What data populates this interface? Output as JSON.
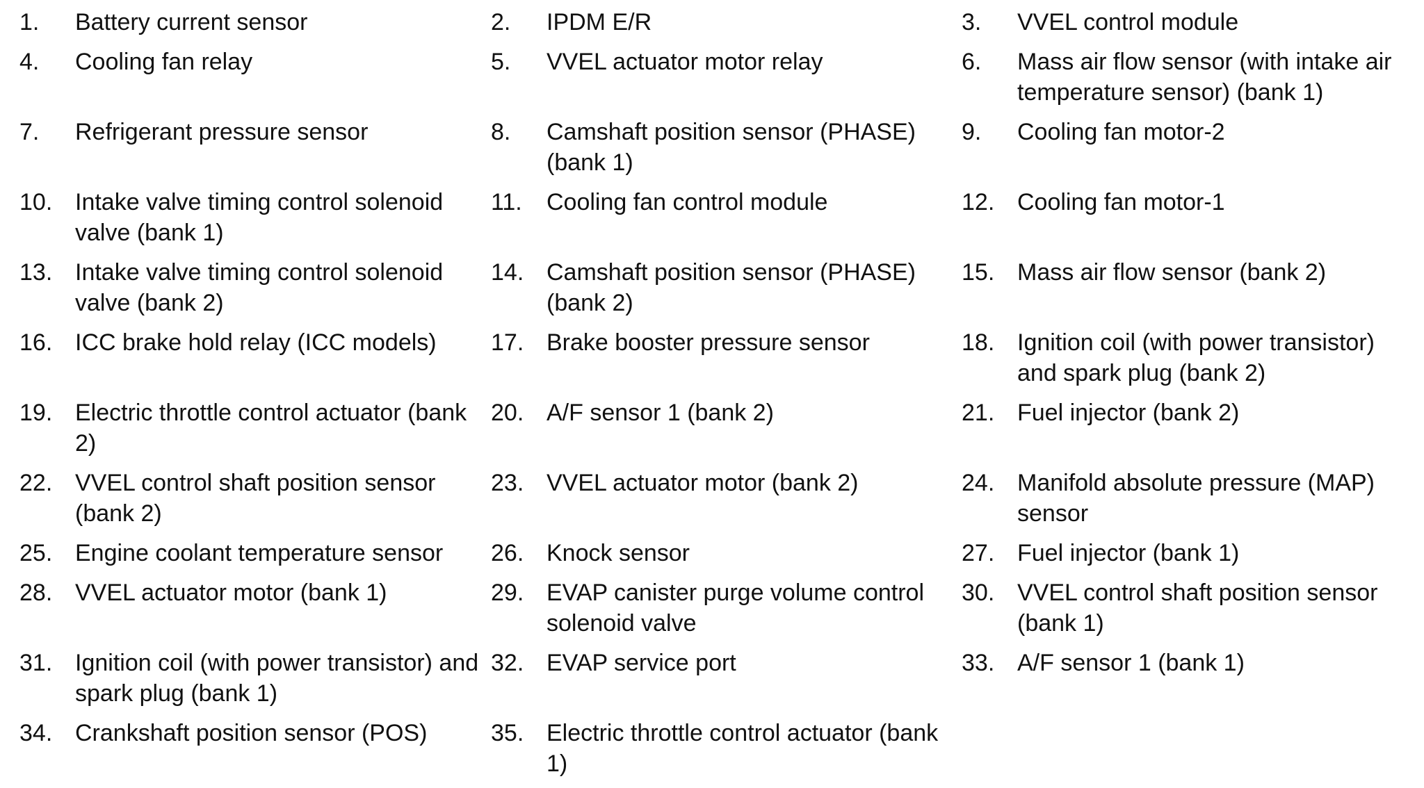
{
  "legend": {
    "items": [
      {
        "num": "1.",
        "label": "Battery current sensor"
      },
      {
        "num": "2.",
        "label": "IPDM E/R"
      },
      {
        "num": "3.",
        "label": "VVEL control module"
      },
      {
        "num": "4.",
        "label": "Cooling fan relay"
      },
      {
        "num": "5.",
        "label": "VVEL actuator motor relay"
      },
      {
        "num": "6.",
        "label": "Mass air flow sensor (with intake air temperature sensor) (bank 1)"
      },
      {
        "num": "7.",
        "label": "Refrigerant pressure sensor"
      },
      {
        "num": "8.",
        "label": "Camshaft position sensor (PHASE) (bank 1)"
      },
      {
        "num": "9.",
        "label": "Cooling fan motor-2"
      },
      {
        "num": "10.",
        "label": "Intake valve timing control solenoid valve (bank 1)"
      },
      {
        "num": "11.",
        "label": "Cooling fan control module"
      },
      {
        "num": "12.",
        "label": "Cooling fan motor-1"
      },
      {
        "num": "13.",
        "label": "Intake valve timing control solenoid valve (bank 2)"
      },
      {
        "num": "14.",
        "label": "Camshaft position sensor (PHASE) (bank 2)"
      },
      {
        "num": "15.",
        "label": "Mass air flow sensor (bank 2)"
      },
      {
        "num": "16.",
        "label": "ICC brake hold relay (ICC models)"
      },
      {
        "num": "17.",
        "label": "Brake booster pressure sensor"
      },
      {
        "num": "18.",
        "label": "Ignition coil (with power transistor) and spark plug (bank 2)"
      },
      {
        "num": "19.",
        "label": "Electric throttle control actuator (bank 2)"
      },
      {
        "num": "20.",
        "label": "A/F sensor 1 (bank 2)"
      },
      {
        "num": "21.",
        "label": "Fuel injector (bank 2)"
      },
      {
        "num": "22.",
        "label": "VVEL control shaft position sensor (bank 2)"
      },
      {
        "num": "23.",
        "label": "VVEL actuator motor (bank 2)"
      },
      {
        "num": "24.",
        "label": "Manifold absolute pressure (MAP) sensor"
      },
      {
        "num": "25.",
        "label": "Engine coolant temperature sensor"
      },
      {
        "num": "26.",
        "label": "Knock sensor"
      },
      {
        "num": "27.",
        "label": "Fuel injector (bank 1)"
      },
      {
        "num": "28.",
        "label": "VVEL actuator motor (bank 1)"
      },
      {
        "num": "29.",
        "label": "EVAP canister purge volume control solenoid valve"
      },
      {
        "num": "30.",
        "label": "VVEL control shaft position sensor (bank 1)"
      },
      {
        "num": "31.",
        "label": "Ignition coil (with power transistor) and spark plug (bank 1)"
      },
      {
        "num": "32.",
        "label": "EVAP service port"
      },
      {
        "num": "33.",
        "label": "A/F sensor 1 (bank 1)"
      },
      {
        "num": "34.",
        "label": "Crankshaft position sensor (POS)"
      },
      {
        "num": "35.",
        "label": "Electric throttle control actuator (bank 1)"
      }
    ]
  }
}
